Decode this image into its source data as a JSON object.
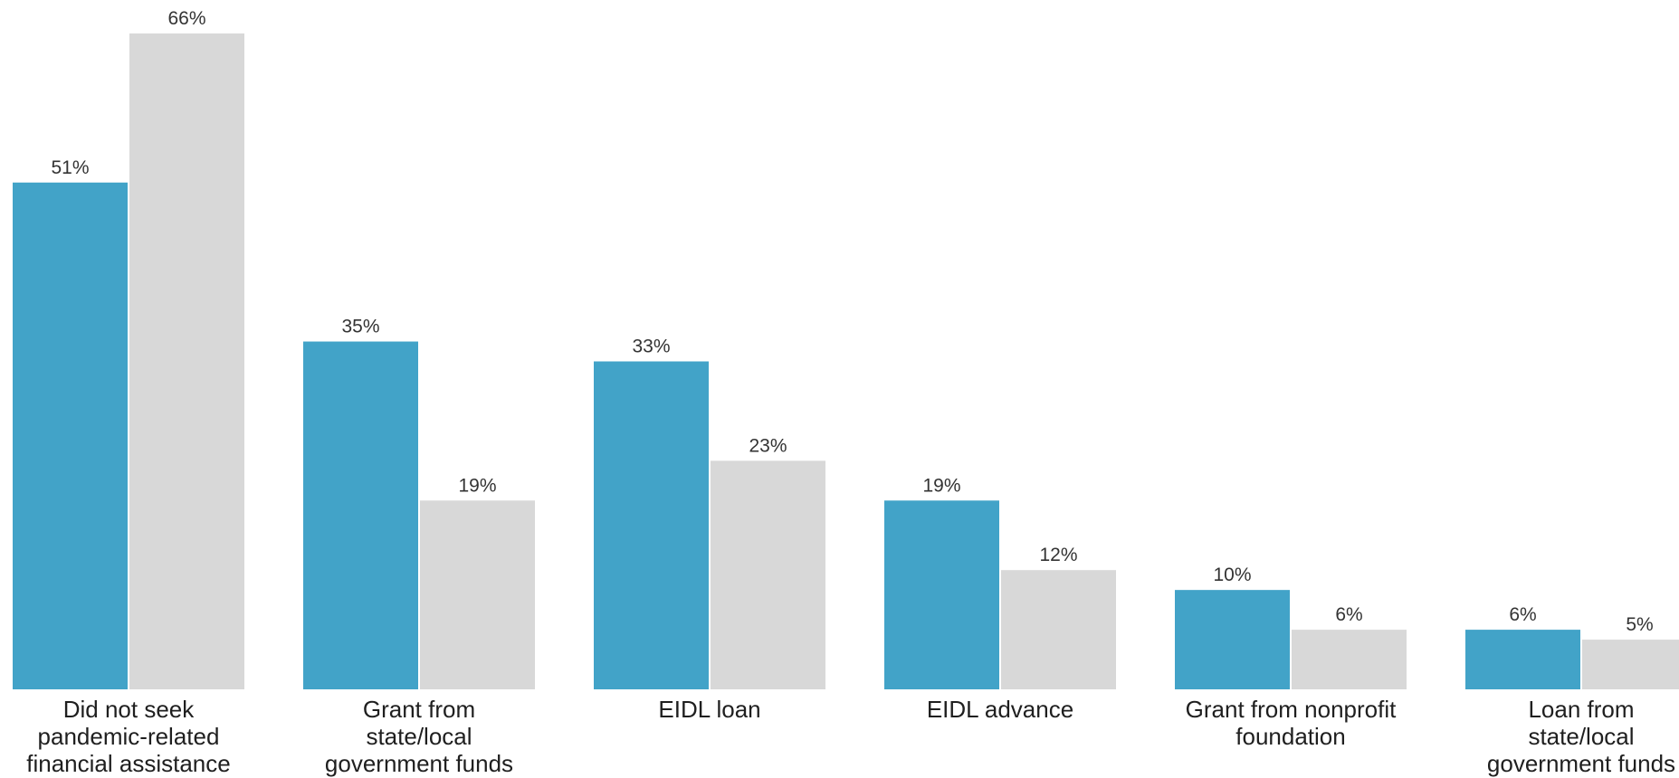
{
  "chart_data": {
    "type": "bar",
    "categories": [
      [
        "Did not seek",
        "pandemic-related",
        "financial assistance"
      ],
      [
        "Grant from",
        "state/local",
        "government funds"
      ],
      [
        "EIDL loan"
      ],
      [
        "EIDL advance"
      ],
      [
        "Grant from nonprofit",
        "foundation"
      ],
      [
        "Loan from",
        "state/local",
        "government funds"
      ]
    ],
    "series": [
      {
        "values": [
          51,
          35,
          33,
          19,
          10,
          6
        ],
        "labels": [
          "51%",
          "35%",
          "33%",
          "19%",
          "10%",
          "6%"
        ],
        "color": "#42a3c8"
      },
      {
        "values": [
          66,
          19,
          23,
          12,
          6,
          5
        ],
        "labels": [
          "66%",
          "19%",
          "23%",
          "12%",
          "6%",
          "5%"
        ],
        "color": "#d8d8d8"
      }
    ],
    "title": "",
    "xlabel": "",
    "ylabel": "",
    "ylim": [
      0,
      66
    ],
    "grid": false,
    "legend": "none"
  }
}
